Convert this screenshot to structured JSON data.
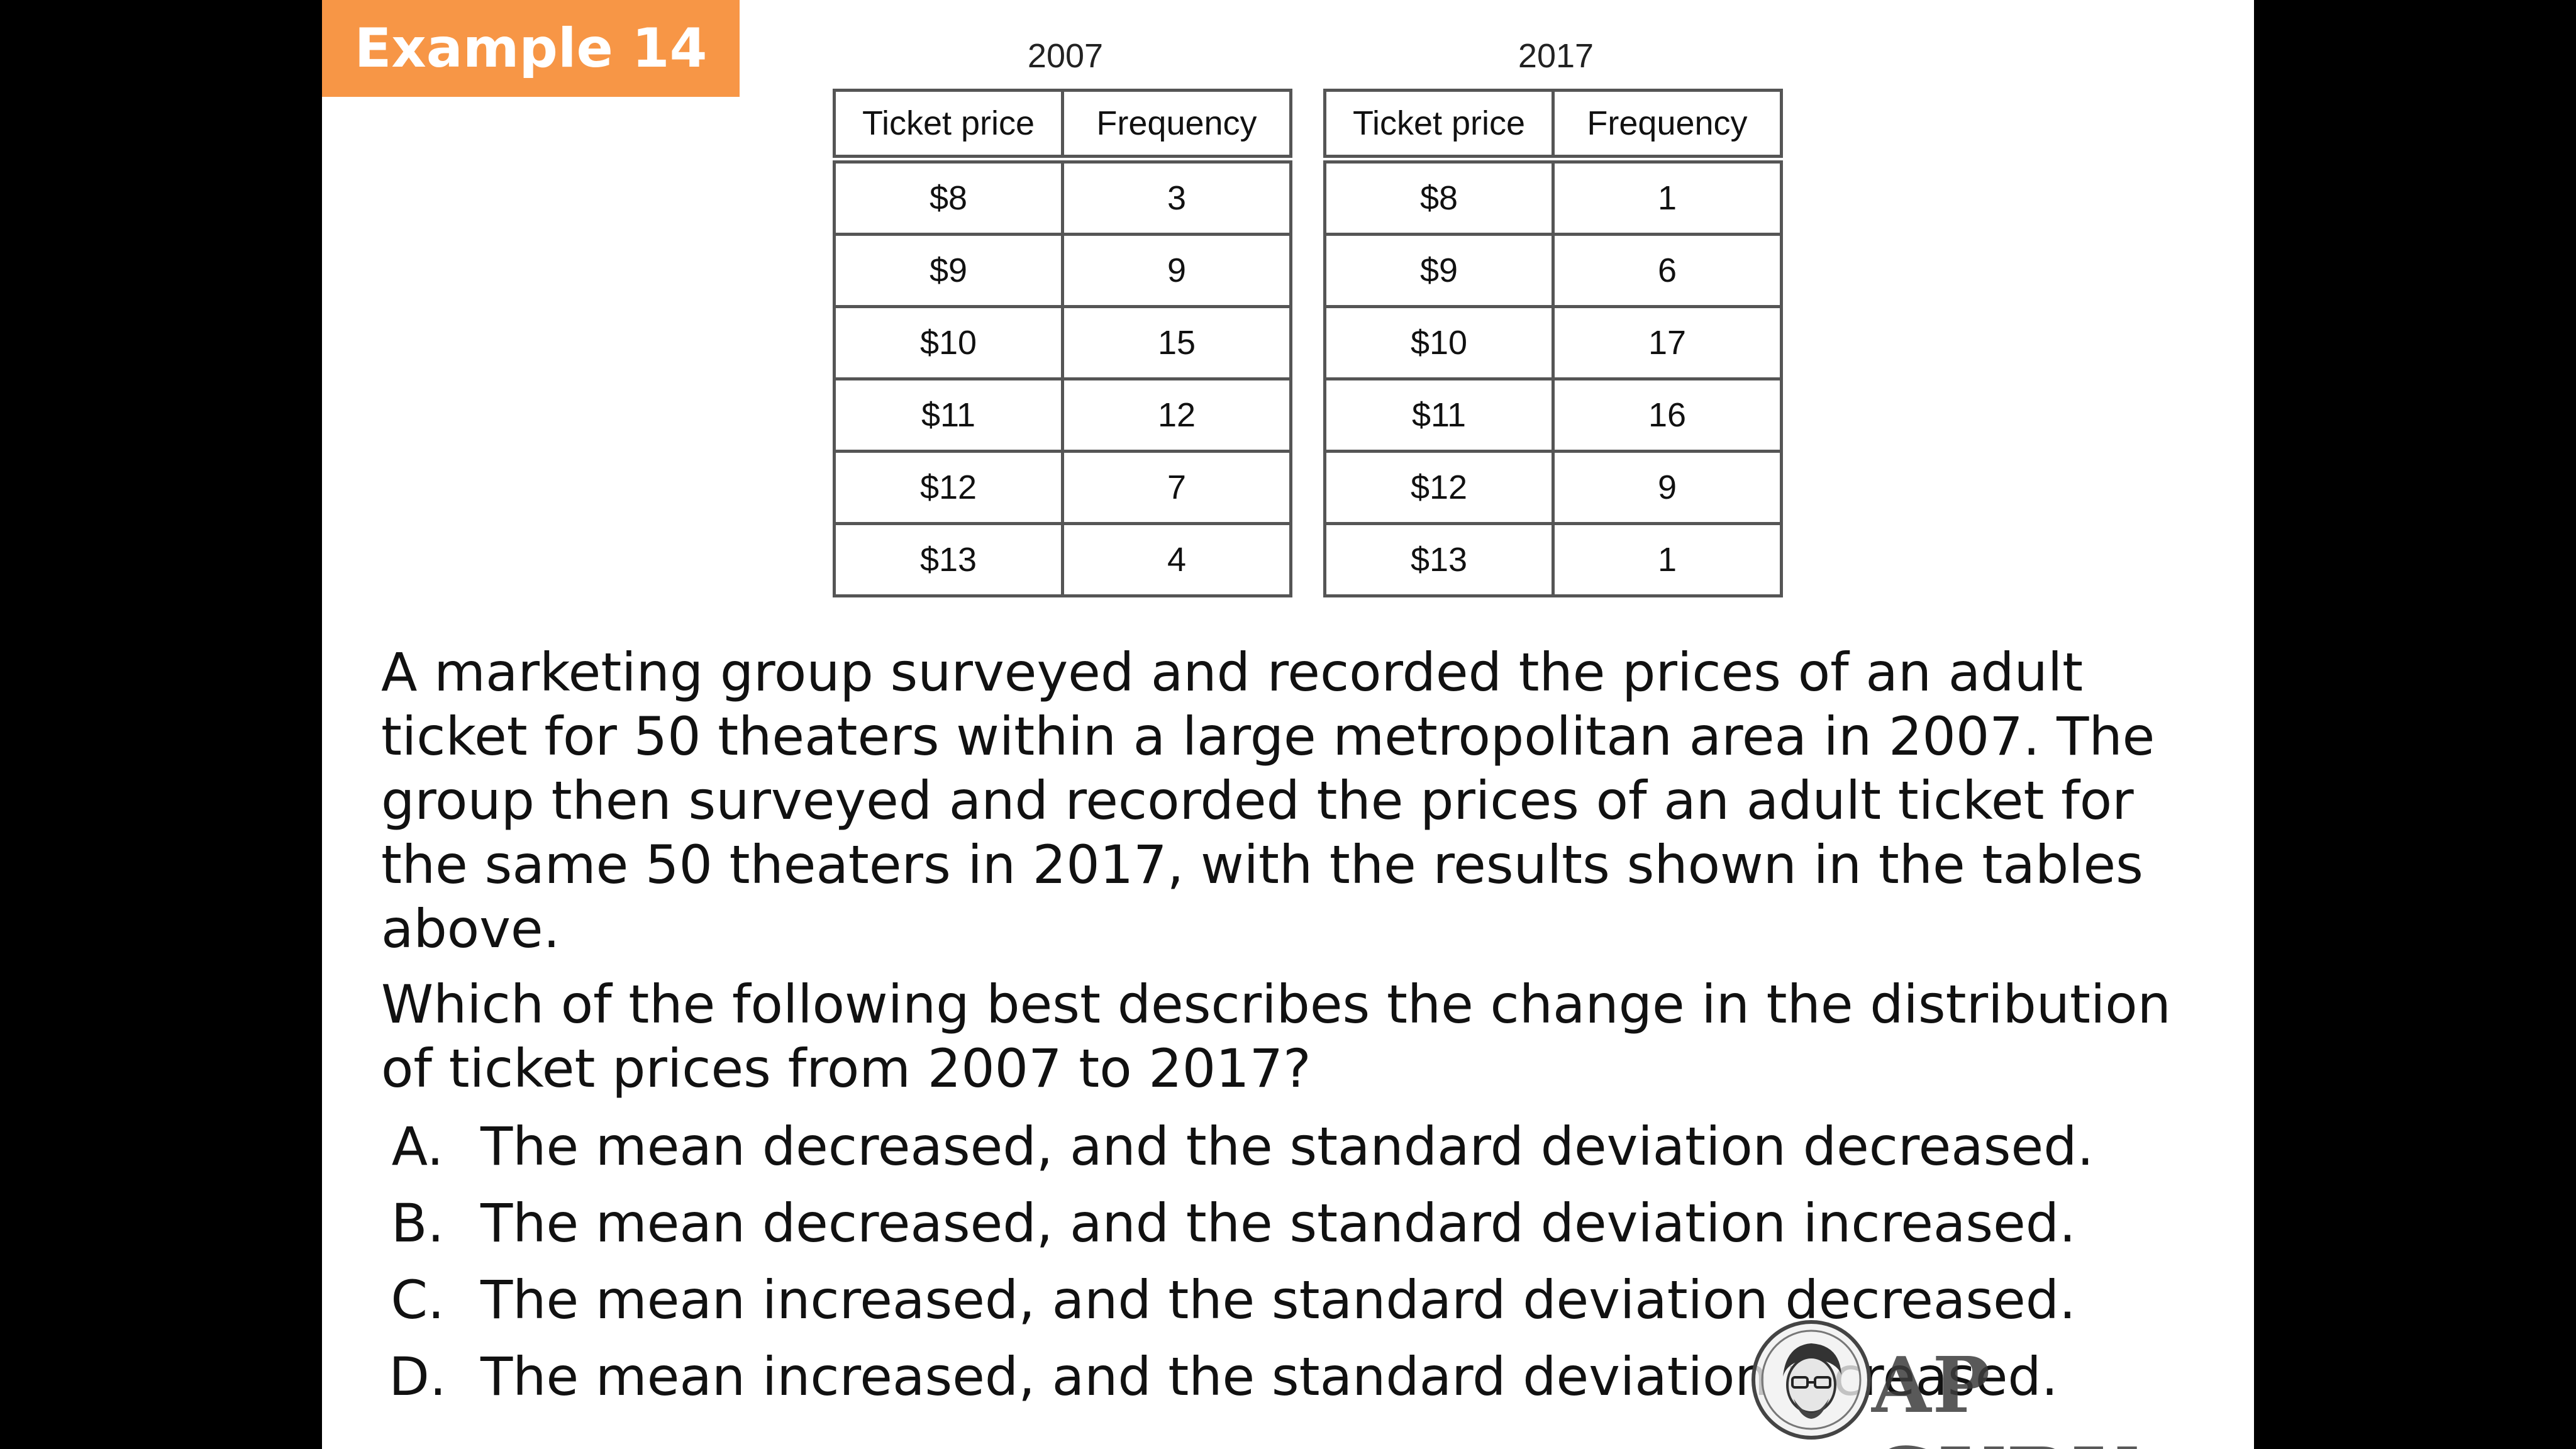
{
  "badge": {
    "label": "Example 14"
  },
  "tables": [
    {
      "year": "2007",
      "headers": [
        "Ticket price",
        "Frequency"
      ],
      "rows": [
        [
          "$8",
          "3"
        ],
        [
          "$9",
          "9"
        ],
        [
          "$10",
          "15"
        ],
        [
          "$11",
          "12"
        ],
        [
          "$12",
          "7"
        ],
        [
          "$13",
          "4"
        ]
      ]
    },
    {
      "year": "2017",
      "headers": [
        "Ticket price",
        "Frequency"
      ],
      "rows": [
        [
          "$8",
          "1"
        ],
        [
          "$9",
          "6"
        ],
        [
          "$10",
          "17"
        ],
        [
          "$11",
          "16"
        ],
        [
          "$12",
          "9"
        ],
        [
          "$13",
          "1"
        ]
      ]
    }
  ],
  "question": {
    "paragraph1": "A marketing group surveyed and recorded the prices of an adult ticket for 50 theaters within a large metropolitan area in 2007.  The group then surveyed and recorded the prices of an adult ticket for the same 50 theaters in 2017, with the results shown in the tables above.",
    "paragraph2": "Which of the following best describes the change in the distribution of ticket prices from 2007 to 2017?"
  },
  "choices": [
    {
      "letter": "A.",
      "text": "The mean decreased, and the standard deviation decreased."
    },
    {
      "letter": "B.",
      "text": "The mean decreased, and the standard deviation increased."
    },
    {
      "letter": "C.",
      "text": "The mean increased, and the standard deviation decreased."
    },
    {
      "letter": "D.",
      "text": "The mean increased, and the standard deviation increased."
    }
  ],
  "watermark": {
    "text": "AP GURU",
    "icon": "guru-face-icon"
  },
  "colors": {
    "badge": "#f79646",
    "frame": "#000000",
    "table_border": "#555555"
  }
}
